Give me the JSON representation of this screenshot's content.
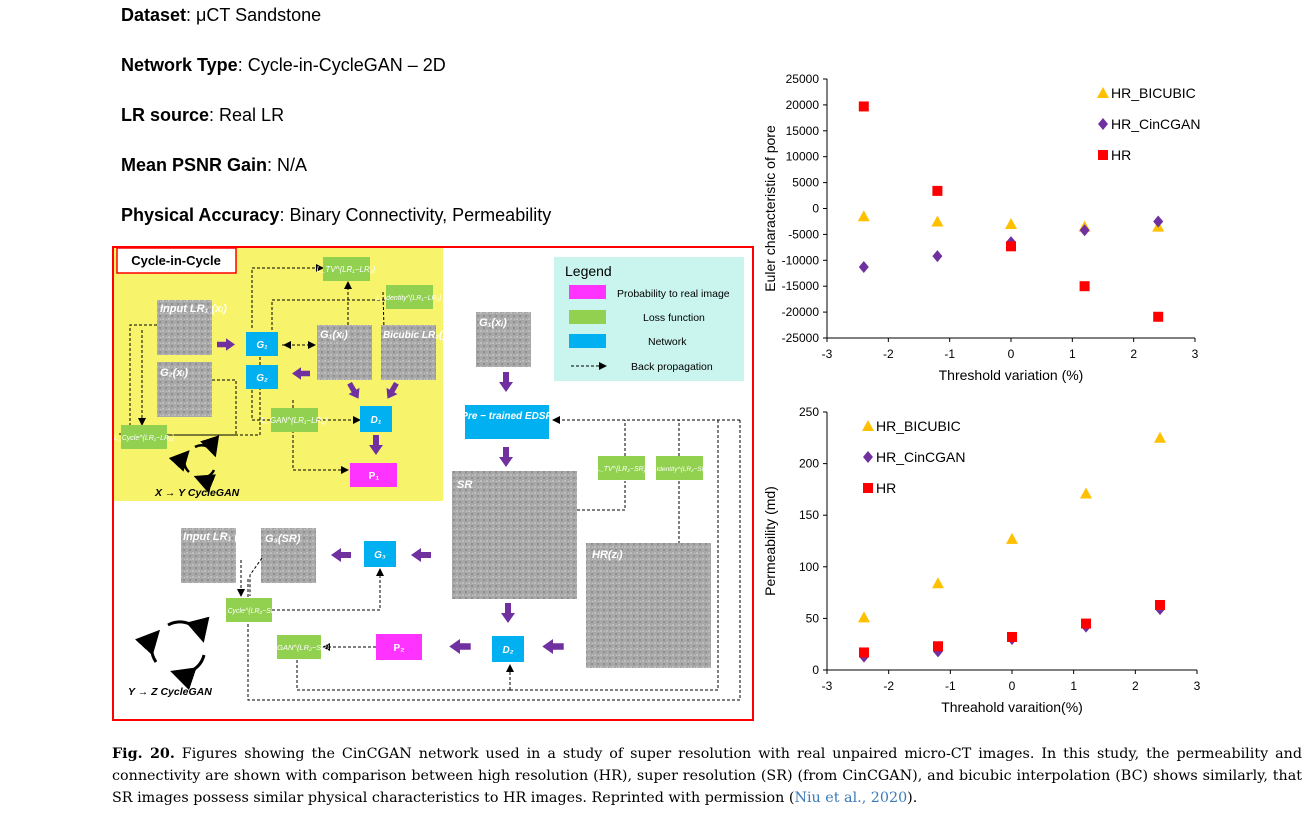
{
  "info": [
    {
      "key": "Dataset",
      "val": ": μCT Sandstone"
    },
    {
      "key": "Network Type",
      "val": ": Cycle-in-CycleGAN – 2D"
    },
    {
      "key": "LR source",
      "val": ": Real LR"
    },
    {
      "key": "Mean PSNR Gain",
      "val": ": N/A"
    },
    {
      "key": "Physical Accuracy",
      "val": ": Binary Connectivity, Permeability"
    }
  ],
  "diagram": {
    "box_title": "Cycle-in-Cycle",
    "legend_title": "Legend",
    "legend_items": [
      "Probability to real image",
      "Loss function",
      "Network",
      "Back propagation"
    ],
    "cycle_xy_label": "X → Y CycleGAN",
    "cycle_yz_label": "Y → Z CycleGAN",
    "nodes": {
      "input_lr1": "Input LR₁ (xᵢ)",
      "g2x": "G₂(xᵢ)",
      "g1": "G₁",
      "g2": "G₂",
      "g1x": "G₁(xᵢ)",
      "bicubic": "Bicubic LR₂(yᵢ)",
      "l_tv_top": "L_TV^{LR₁−LR₂}",
      "l_identity_top": "L_Identity^{LR₁−LR₂}",
      "l_gan_top": "L_GAN^{LR₁−LR₂}",
      "l_cycle_top": "L_Cycle^{LR₁−LR₂}",
      "d1": "D₁",
      "p1": "P₁",
      "g1x_right": "G₁(xᵢ)",
      "edsr": "Pre − trained EDSR",
      "sr": "SR",
      "l_tv_sr": "L_TV^{LR₂−SR}",
      "l_identity_sr": "L_Identity^{LR₂−SR}",
      "hr": "HR(zᵢ)",
      "input_lr1_bottom": "Input LR₁ (xᵢ)",
      "g3sr": "G₃(SR)",
      "g3": "G₃",
      "l_cycle_sr": "L_Cycle^{LR₂−SR}",
      "l_gan_sr": "L_GAN^{LR₂−SR}",
      "p2": "P₂",
      "d2": "D₂"
    },
    "colors": {
      "yellow": "#f7f36b",
      "green": "#92d050",
      "blue": "#00b0f0",
      "magenta": "#ff33ff",
      "purple": "#7030a0",
      "red": "#ff0000",
      "legend_bg": "#c9f5ee"
    }
  },
  "chart_data": [
    {
      "type": "scatter",
      "title": "",
      "xlabel": "Threshold variation (%)",
      "ylabel": "Euler characteristic of pore",
      "xlim": [
        -3,
        3
      ],
      "ylim": [
        -25000,
        25000
      ],
      "xticks": [
        "-3",
        "-2",
        "-1",
        "0",
        "1",
        "2",
        "3"
      ],
      "yticks": [
        "25000",
        "20000",
        "15000",
        "10000",
        "5000",
        "0",
        "-5000",
        "-10000",
        "-15000",
        "-20000",
        "-25000"
      ],
      "legend_position": "top-right",
      "series": [
        {
          "name": "HR_BICUBIC",
          "color": "#ffc000",
          "marker": "triangle",
          "x": [
            -2.4,
            -1.2,
            0,
            1.2,
            2.4
          ],
          "y": [
            -1500,
            -2500,
            -3000,
            -3500,
            -3500
          ]
        },
        {
          "name": "HR_CinCGAN",
          "color": "#7030a0",
          "marker": "diamond",
          "x": [
            -2.4,
            -1.2,
            0,
            1.2,
            2.4
          ],
          "y": [
            -11300,
            -9200,
            -6500,
            -4200,
            -2500
          ]
        },
        {
          "name": "HR",
          "color": "#ff0000",
          "marker": "square",
          "x": [
            -2.4,
            -1.2,
            0,
            1.2,
            2.4
          ],
          "y": [
            19700,
            3400,
            -7300,
            -15000,
            -20900
          ]
        }
      ]
    },
    {
      "type": "scatter",
      "title": "",
      "xlabel": "Threahold varaition(%)",
      "ylabel": "Permeability (md)",
      "xlim": [
        -3,
        3
      ],
      "ylim": [
        0,
        250
      ],
      "xticks": [
        "-3",
        "-2",
        "-1",
        "0",
        "1",
        "2",
        "3"
      ],
      "yticks": [
        "250",
        "200",
        "150",
        "100",
        "50",
        "0"
      ],
      "legend_position": "top-left",
      "series": [
        {
          "name": "HR_BICUBIC",
          "color": "#ffc000",
          "marker": "triangle",
          "x": [
            -2.4,
            -1.2,
            0,
            1.2,
            2.4
          ],
          "y": [
            51,
            84,
            127,
            171,
            225
          ]
        },
        {
          "name": "HR_CinCGAN",
          "color": "#7030a0",
          "marker": "diamond",
          "x": [
            -2.4,
            -1.2,
            0,
            1.2,
            2.4
          ],
          "y": [
            13,
            18,
            30,
            42,
            59
          ]
        },
        {
          "name": "HR",
          "color": "#ff0000",
          "marker": "square",
          "x": [
            -2.4,
            -1.2,
            0,
            1.2,
            2.4
          ],
          "y": [
            17,
            23,
            32,
            45,
            63
          ]
        }
      ]
    }
  ],
  "caption": {
    "label": "Fig. 20.",
    "text": " Figures showing the CinCGAN network used in a study of super resolution with real unpaired micro-CT images. In this study, the permeability and connectivity are shown with comparison between high resolution (HR), super resolution (SR) (from CinCGAN), and bicubic interpolation (BC) shows similarly, that SR images possess similar physical characteristics to HR images. Reprinted with permission (",
    "ref": "Niu et al., 2020",
    "end": ")."
  }
}
